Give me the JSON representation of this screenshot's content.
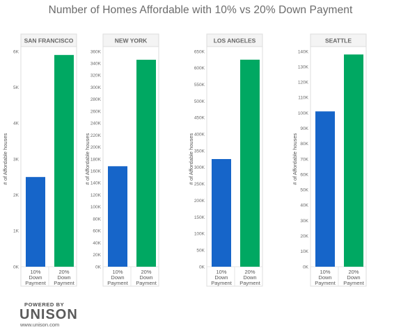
{
  "title": "Number of Homes Affordable with 10% vs 20% Down Payment",
  "branding": {
    "powered_by": "POWERED BY",
    "logo": "UNISON",
    "url": "www.unison.com"
  },
  "colors": {
    "bar_10": "#1665c9",
    "bar_20": "#00a862",
    "panel_border": "#dcdcdc",
    "grid": "#e6e6e6"
  },
  "chart_data": [
    {
      "type": "bar",
      "title": "SAN FRANCISCO",
      "ylabel": "# of Affordable houses",
      "categories": [
        "10% Down Payment",
        "20% Down Payment"
      ],
      "category_lines": [
        [
          "10%",
          "Down",
          "Payment"
        ],
        [
          "20%",
          "Down",
          "Payment"
        ]
      ],
      "values": [
        2500,
        5900
      ],
      "ylim": [
        0,
        6000
      ],
      "ticks": [
        0,
        1000,
        2000,
        3000,
        4000,
        5000,
        6000
      ],
      "tick_labels": [
        "0K",
        "1K",
        "2K",
        "3K",
        "4K",
        "5K",
        "6K"
      ]
    },
    {
      "type": "bar",
      "title": "NEW YORK",
      "ylabel": "# of Affordable houses",
      "categories": [
        "10% Down Payment",
        "20% Down Payment"
      ],
      "category_lines": [
        [
          "10%",
          "Down",
          "Payment"
        ],
        [
          "20%",
          "Down",
          "Payment"
        ]
      ],
      "values": [
        168000,
        346000
      ],
      "ylim": [
        0,
        360000
      ],
      "ticks": [
        0,
        20000,
        40000,
        60000,
        80000,
        100000,
        120000,
        140000,
        160000,
        180000,
        200000,
        220000,
        240000,
        260000,
        280000,
        300000,
        320000,
        340000,
        360000
      ],
      "tick_labels": [
        "0K",
        "20K",
        "40K",
        "60K",
        "80K",
        "100K",
        "120K",
        "140K",
        "160K",
        "180K",
        "200K",
        "220K",
        "240K",
        "260K",
        "280K",
        "300K",
        "320K",
        "340K",
        "360K"
      ]
    },
    {
      "type": "bar",
      "title": "LOS ANGELES",
      "ylabel": "# of Affordable houses",
      "categories": [
        "10% Down Payment",
        "20% Down Payment"
      ],
      "category_lines": [
        [
          "10%",
          "Down",
          "Payment"
        ],
        [
          "20%",
          "Down",
          "Payment"
        ]
      ],
      "values": [
        325000,
        625000
      ],
      "ylim": [
        0,
        650000
      ],
      "ticks": [
        0,
        50000,
        100000,
        150000,
        200000,
        250000,
        300000,
        350000,
        400000,
        450000,
        500000,
        550000,
        600000,
        650000
      ],
      "tick_labels": [
        "0K",
        "50K",
        "100K",
        "150K",
        "200K",
        "250K",
        "300K",
        "350K",
        "400K",
        "450K",
        "500K",
        "550K",
        "600K",
        "650K"
      ]
    },
    {
      "type": "bar",
      "title": "SEATTLE",
      "ylabel": "# of Affordable houses",
      "categories": [
        "10% Down Payment",
        "20% Down Payment"
      ],
      "category_lines": [
        [
          "10%",
          "Down",
          "Payment"
        ],
        [
          "20%",
          "Down",
          "Payment"
        ]
      ],
      "values": [
        101000,
        138000
      ],
      "ylim": [
        0,
        140000
      ],
      "ticks": [
        0,
        10000,
        20000,
        30000,
        40000,
        50000,
        60000,
        70000,
        80000,
        90000,
        100000,
        110000,
        120000,
        130000,
        140000
      ],
      "tick_labels": [
        "0K",
        "10K",
        "20K",
        "30K",
        "40K",
        "50K",
        "60K",
        "70K",
        "80K",
        "90K",
        "100K",
        "110K",
        "120K",
        "130K",
        "140K"
      ]
    }
  ]
}
